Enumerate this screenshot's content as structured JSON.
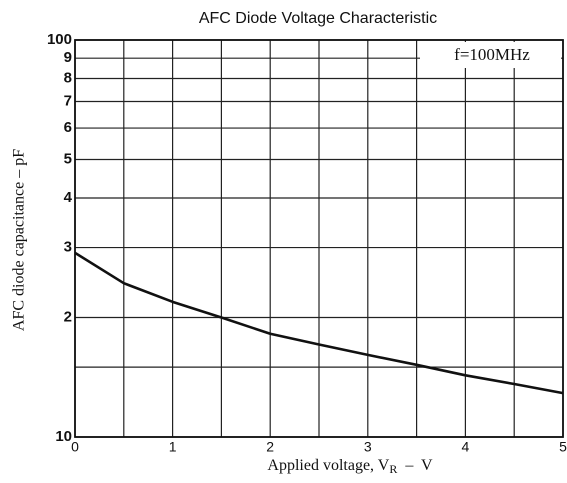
{
  "chart_data": {
    "type": "line",
    "title": "AFC Diode Voltage Characteristic",
    "xlabel": {
      "main": "Applied voltage, V",
      "sub": "R",
      "tail": "  –  V"
    },
    "ylabel": "AFC diode capacitance  –  pF",
    "annotation": "f=100MHz",
    "x": [
      0,
      0.5,
      1,
      1.5,
      2,
      2.5,
      3,
      3.5,
      4,
      4.5,
      5
    ],
    "series": [
      {
        "name": "capacitance",
        "color": "#111111",
        "values": [
          29.1,
          24.4,
          21.9,
          20,
          18.2,
          17.1,
          16.1,
          15.2,
          14.3,
          13.6,
          12.9
        ]
      }
    ],
    "xlim": [
      0,
      5
    ],
    "ylim": [
      10,
      100
    ],
    "ylog": true,
    "xticks": [
      0,
      1,
      2,
      3,
      4,
      5
    ],
    "x_minor_grid": [
      0.5,
      1.5,
      2.5,
      3.5,
      4.5
    ],
    "yticks": [
      10,
      {
        "value": 20,
        "label": "2"
      },
      {
        "value": 30,
        "label": "3"
      },
      {
        "value": 40,
        "label": "4"
      },
      {
        "value": 50,
        "label": "5"
      },
      {
        "value": 60,
        "label": "6"
      },
      {
        "value": 70,
        "label": "7"
      },
      {
        "value": 80,
        "label": "8"
      },
      {
        "value": 90,
        "label": "9"
      },
      100
    ],
    "y_minor_grid": [
      15
    ],
    "grid": true
  }
}
